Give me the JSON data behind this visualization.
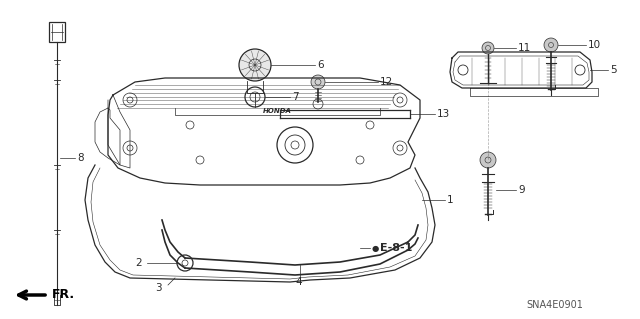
{
  "background_color": "#ffffff",
  "line_color": "#2a2a2a",
  "text_color": "#000000",
  "label_fontsize": 7.5,
  "bold_label_fontsize": 8.5,
  "figsize": [
    6.4,
    3.19
  ],
  "dpi": 100,
  "fr_text": "FR.",
  "code_text": "SNA4E0901",
  "e_label_text": "● E-8-1",
  "part_numbers": [
    "1",
    "2",
    "3",
    "4",
    "5",
    "6",
    "7",
    "8",
    "9",
    "10",
    "11",
    "12",
    "13"
  ]
}
